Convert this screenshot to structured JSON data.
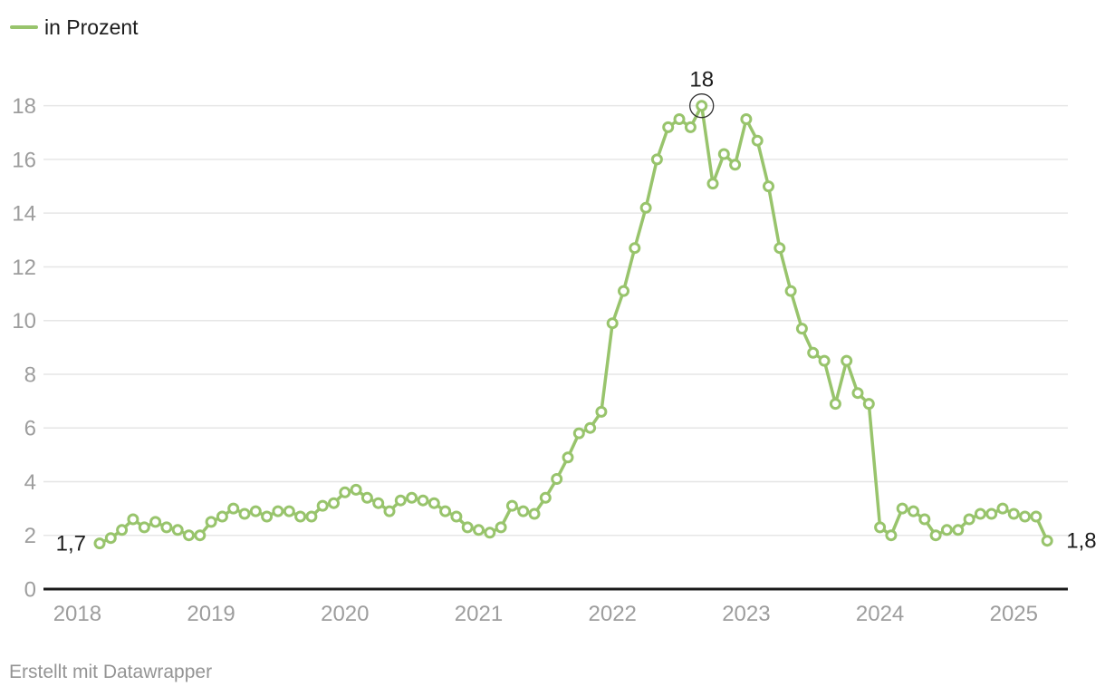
{
  "legend": {
    "label": "in Prozent",
    "series_color": "#98c46c"
  },
  "footer": {
    "text": "Erstellt mit Datawrapper"
  },
  "colors": {
    "line": "#98c46c",
    "marker_fill": "#ffffff",
    "grid": "#e6e6e6",
    "axis_line": "#1a1a1a",
    "tick_text": "#9d9d9d",
    "annotation_text": "#1c1c1c",
    "annotation_circle": "#333333"
  },
  "chart_data": {
    "type": "line",
    "title": "",
    "xlabel": "",
    "ylabel": "in Prozent",
    "x_start_month": "2018-03",
    "x_end_month": "2025-04",
    "x_frequency": "monthly",
    "x_tick_labels": [
      "2018",
      "2019",
      "2020",
      "2021",
      "2022",
      "2023",
      "2024",
      "2025"
    ],
    "y_ticks": [
      0,
      2,
      4,
      6,
      8,
      10,
      12,
      14,
      16,
      18
    ],
    "ylim": [
      0,
      19.5
    ],
    "grid": true,
    "legend_position": "top-left",
    "series": [
      {
        "name": "in Prozent",
        "values": [
          1.7,
          1.9,
          2.2,
          2.6,
          2.3,
          2.5,
          2.3,
          2.2,
          2.0,
          2.0,
          2.5,
          2.7,
          3.0,
          2.8,
          2.9,
          2.7,
          2.9,
          2.9,
          2.7,
          2.7,
          3.1,
          3.2,
          3.6,
          3.7,
          3.4,
          3.2,
          2.9,
          3.3,
          3.4,
          3.3,
          3.2,
          2.9,
          2.7,
          2.3,
          2.2,
          2.1,
          2.3,
          3.1,
          2.9,
          2.8,
          3.4,
          4.1,
          4.9,
          5.8,
          6.0,
          6.6,
          9.9,
          11.1,
          12.7,
          14.2,
          16.0,
          17.2,
          17.5,
          17.2,
          18.0,
          15.1,
          16.2,
          15.8,
          17.5,
          16.7,
          15.0,
          12.7,
          11.1,
          9.7,
          8.8,
          8.5,
          6.9,
          8.5,
          7.3,
          6.9,
          2.3,
          2.0,
          3.0,
          2.9,
          2.6,
          2.0,
          2.2,
          2.2,
          2.6,
          2.8,
          2.8,
          3.0,
          2.8,
          2.7,
          2.7,
          1.8
        ]
      }
    ],
    "annotations": {
      "start": {
        "label": "1,7",
        "index": 0
      },
      "peak": {
        "label": "18",
        "index": 54,
        "circled": true
      },
      "end": {
        "label": "1,8",
        "index": 85
      }
    }
  }
}
